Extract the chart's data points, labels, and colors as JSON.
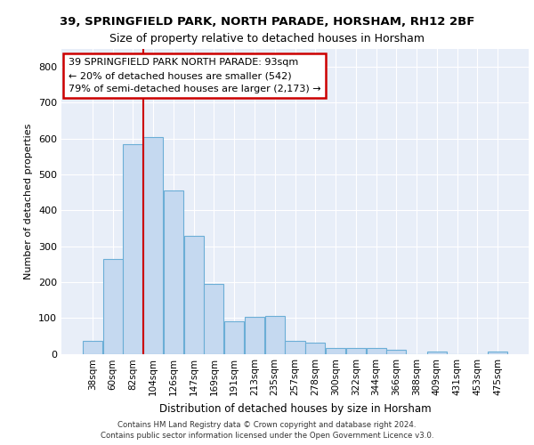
{
  "title_line1": "39, SPRINGFIELD PARK, NORTH PARADE, HORSHAM, RH12 2BF",
  "title_line2": "Size of property relative to detached houses in Horsham",
  "xlabel": "Distribution of detached houses by size in Horsham",
  "ylabel": "Number of detached properties",
  "footer_line1": "Contains HM Land Registry data © Crown copyright and database right 2024.",
  "footer_line2": "Contains public sector information licensed under the Open Government Licence v3.0.",
  "bar_labels": [
    "38sqm",
    "60sqm",
    "82sqm",
    "104sqm",
    "126sqm",
    "147sqm",
    "169sqm",
    "191sqm",
    "213sqm",
    "235sqm",
    "257sqm",
    "278sqm",
    "300sqm",
    "322sqm",
    "344sqm",
    "366sqm",
    "388sqm",
    "409sqm",
    "431sqm",
    "453sqm",
    "475sqm"
  ],
  "bar_values": [
    35,
    265,
    585,
    605,
    455,
    330,
    195,
    90,
    103,
    105,
    35,
    30,
    17,
    16,
    15,
    10,
    0,
    6,
    0,
    0,
    7
  ],
  "bar_color": "#c5d9f0",
  "bar_edge_color": "#6baed6",
  "background_color": "#e8eef8",
  "grid_color": "#ffffff",
  "annotation_box_text": "39 SPRINGFIELD PARK NORTH PARADE: 93sqm\n← 20% of detached houses are smaller (542)\n79% of semi-detached houses are larger (2,173) →",
  "annotation_box_color": "#ffffff",
  "annotation_box_edge_color": "#cc0000",
  "marker_color": "#cc0000",
  "ylim": [
    0,
    850
  ],
  "yticks": [
    0,
    100,
    200,
    300,
    400,
    500,
    600,
    700,
    800
  ]
}
